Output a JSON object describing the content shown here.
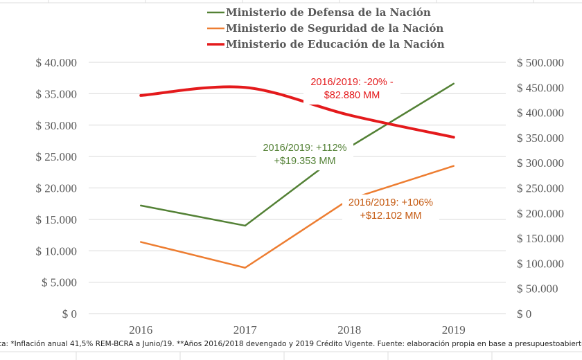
{
  "chart_data": {
    "type": "line",
    "title": "",
    "categories": [
      "2016",
      "2017",
      "2018",
      "2019"
    ],
    "xlabel": "",
    "ylabel": "",
    "grid": true,
    "legend_position": "top",
    "y_left": {
      "range": [
        0,
        40000
      ],
      "step": 5000,
      "tick_labels": [
        "$ 0",
        "$ 5.000",
        "$ 10.000",
        "$ 15.000",
        "$ 20.000",
        "$ 25.000",
        "$ 30.000",
        "$ 35.000",
        "$ 40.000"
      ]
    },
    "y_right": {
      "range": [
        0,
        500000
      ],
      "step": 50000,
      "tick_labels": [
        "$ 0",
        "$ 50.000",
        "$ 100.000",
        "$ 150.000",
        "$ 200.000",
        "$ 250.000",
        "$ 300.000",
        "$ 350.000",
        "$ 400.000",
        "$ 450.000",
        "$ 500.000"
      ]
    },
    "series": [
      {
        "name": "Ministerio de Defensa de la Nación",
        "color": "#538135",
        "axis": "left",
        "values": [
          17200,
          14000,
          26500,
          36600
        ],
        "line_weight": "normal"
      },
      {
        "name": "Ministerio de Seguridad de la Nación",
        "color": "#ED7D31",
        "axis": "left",
        "values": [
          11400,
          7300,
          18200,
          23500
        ],
        "line_weight": "normal"
      },
      {
        "name": "Ministerio de Educación de la Nación",
        "color": "#E41A1C",
        "axis": "right",
        "values": [
          434000,
          450000,
          395000,
          351000
        ],
        "line_weight": "bold"
      }
    ],
    "annotations": [
      {
        "series": "Ministerio de Educación de la Nación",
        "lines": [
          "2016/2019: -20% -",
          "$82.880 MM"
        ],
        "color": "#E41A1C"
      },
      {
        "series": "Ministerio de Defensa de la Nación",
        "lines": [
          "2016/2019: +112%",
          "+$19.353 MM"
        ],
        "color": "#538135"
      },
      {
        "series": "Ministerio de Seguridad de la Nación",
        "lines": [
          "2016/2019: +106%",
          "+$12.102 MM"
        ],
        "color": "#C55A11"
      }
    ]
  },
  "footer": {
    "note": "ta: *Inflación anual 41,5% REM-BCRA a Junio/19. **Años 2016/2018 devengado y 2019 Crédito Vigente. Fuente: elaboración propia en base a presupuestoabierto.gob.ar"
  }
}
